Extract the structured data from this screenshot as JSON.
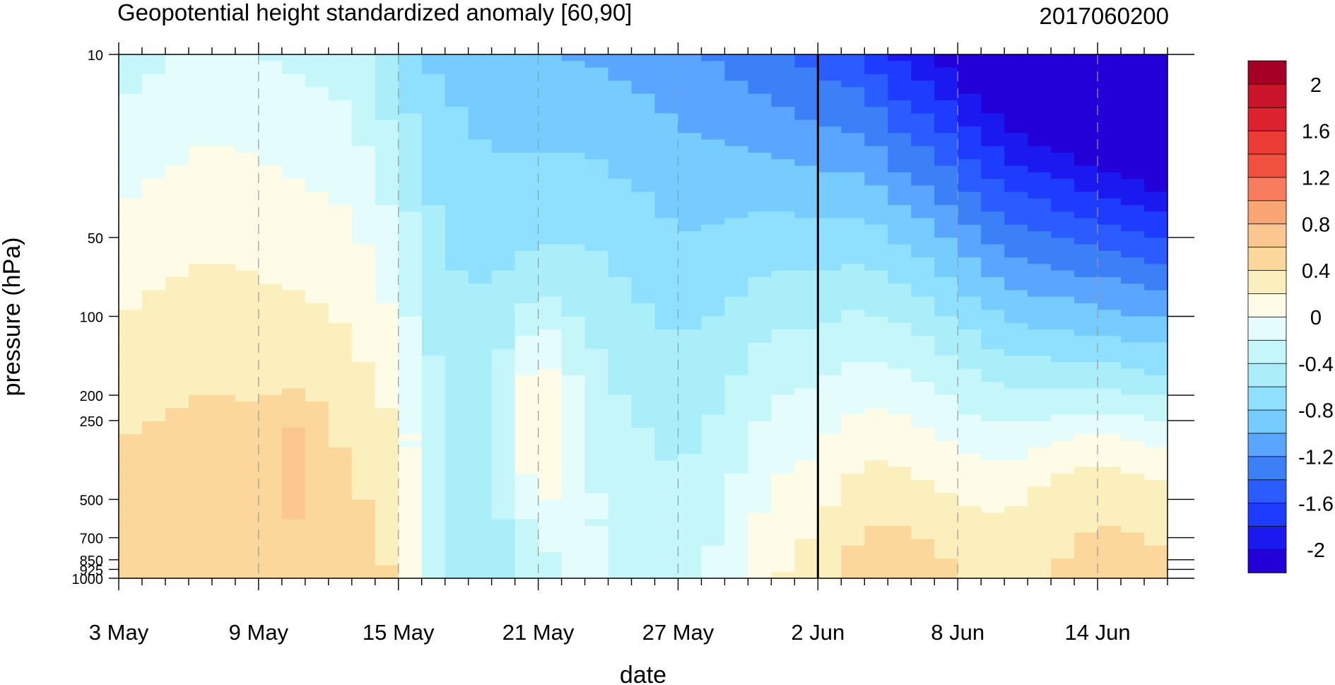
{
  "chart_data": {
    "type": "contour",
    "title": "Geopotential height standardized anomaly [60,90]",
    "date_label": "2017060200",
    "xlabel": "date",
    "ylabel": "pressure (hPa)",
    "y_scale": "log",
    "y_inverted": true,
    "ylim": [
      1000,
      10
    ],
    "xlim": [
      "3 May",
      "17 Jun"
    ],
    "x_ticks": [
      "3 May",
      "9 May",
      "15 May",
      "21 May",
      "27 May",
      "2 Jun",
      "8 Jun",
      "14 Jun"
    ],
    "y_ticks": [
      {
        "value": 10,
        "label": "10"
      },
      {
        "value": 50,
        "label": "50"
      },
      {
        "value": 100,
        "label": "100"
      },
      {
        "value": 200,
        "label": "200"
      },
      {
        "value": 250,
        "label": "250"
      },
      {
        "value": 500,
        "label": "500"
      },
      {
        "value": 700,
        "label": "700"
      },
      {
        "value": 850,
        "label": "850"
      },
      {
        "value": 925,
        "label": "925"
      },
      {
        "value": 1000,
        "label": "1000"
      }
    ],
    "vertical_marker": "2 Jun",
    "colorbar": {
      "levels": [
        -2.2,
        -2,
        -1.8,
        -1.6,
        -1.4,
        -1.2,
        -1,
        -0.8,
        -0.6,
        -0.4,
        -0.2,
        0,
        0.2,
        0.4,
        0.6,
        0.8,
        1,
        1.2,
        1.4,
        1.6,
        1.8,
        2,
        2.2
      ],
      "colors": [
        "#2400d8",
        "#1a1af0",
        "#1e3cff",
        "#2a5cff",
        "#3c80f8",
        "#5aa5ff",
        "#76ccff",
        "#8fe0ff",
        "#aaeefa",
        "#c4f6fa",
        "#e4fcfc",
        "#fefbe6",
        "#fcefbe",
        "#fbd79c",
        "#fbc68f",
        "#f9a574",
        "#f77d5e",
        "#f0503e",
        "#eb3b35",
        "#dc222c",
        "#c9142a",
        "#a50026"
      ],
      "labels": [
        "2",
        "1.6",
        "1.2",
        "0.8",
        "0.4",
        "0",
        "-0.4",
        "-0.8",
        "-1.2",
        "-1.6",
        "-2"
      ],
      "label_values": [
        2,
        1.6,
        1.2,
        0.8,
        0.4,
        0,
        -0.4,
        -0.8,
        -1.2,
        -1.6,
        -2
      ]
    }
  }
}
